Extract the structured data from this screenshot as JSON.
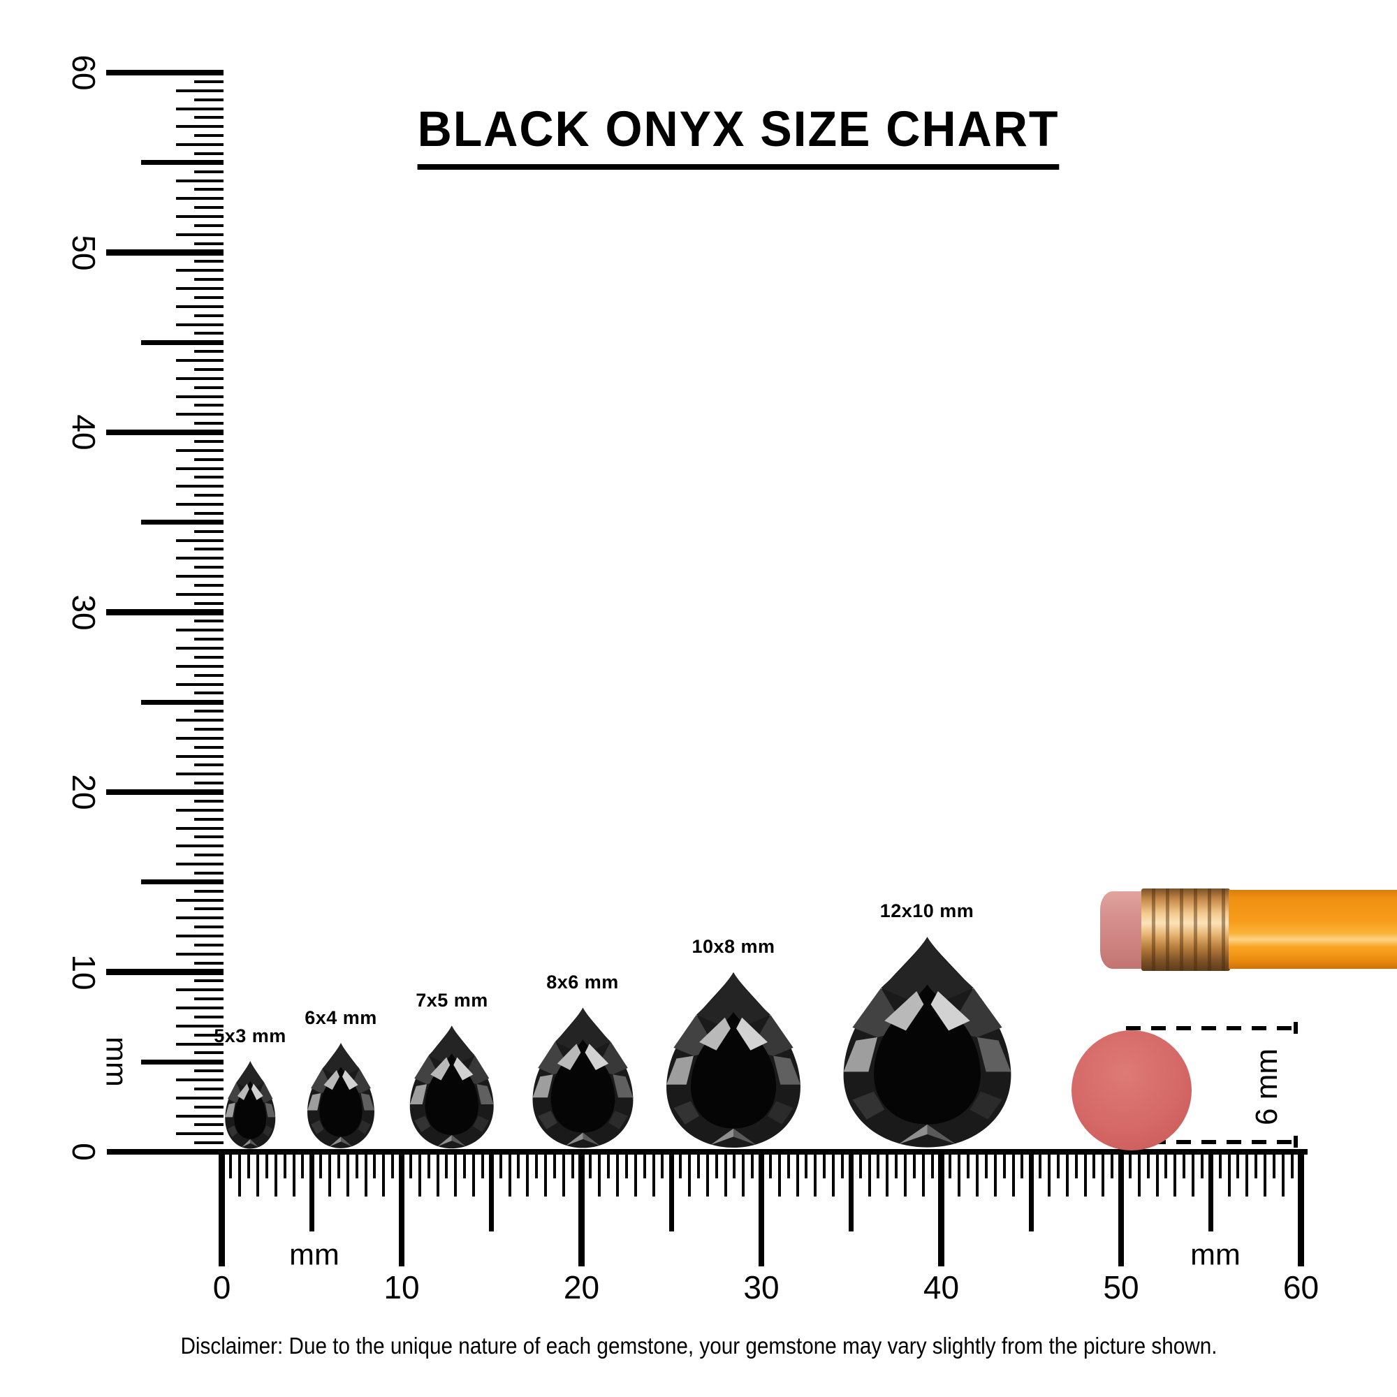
{
  "title": "BLACK ONYX SIZE CHART",
  "rulers": {
    "vertical": {
      "tick_labels": [
        "0",
        "10",
        "20",
        "30",
        "40",
        "50",
        "60"
      ],
      "unit_label": "mm"
    },
    "horizontal": {
      "tick_labels": [
        "0",
        "10",
        "20",
        "30",
        "40",
        "50",
        "60"
      ],
      "unit_label_left": "mm",
      "unit_label_right": "mm"
    }
  },
  "gems": [
    {
      "label": "5x3 mm",
      "width_mm": 3,
      "height_mm": 5
    },
    {
      "label": "6x4 mm",
      "width_mm": 4,
      "height_mm": 6
    },
    {
      "label": "7x5 mm",
      "width_mm": 5,
      "height_mm": 7
    },
    {
      "label": "8x6 mm",
      "width_mm": 6,
      "height_mm": 8
    },
    {
      "label": "10x8 mm",
      "width_mm": 8,
      "height_mm": 10
    },
    {
      "label": "12x10 mm",
      "width_mm": 10,
      "height_mm": 12
    }
  ],
  "comparison": {
    "dot_label": "6 mm",
    "dot_color": "#d56967",
    "pencil_body_color": "#f89d1c",
    "pencil_eraser_color": "#d7928f",
    "pencil_ferrule_color": "#e9b878"
  },
  "disclaimer": "Disclaimer: Due to the unique nature of each gemstone, your gemstone may vary slightly from the picture shown."
}
